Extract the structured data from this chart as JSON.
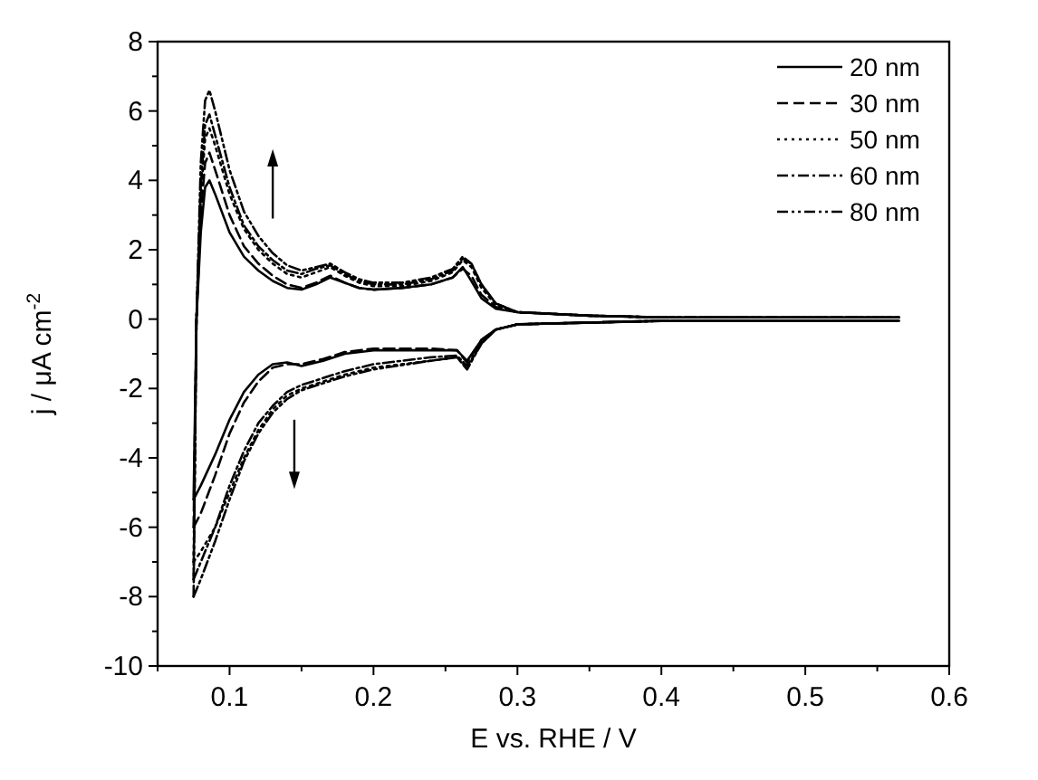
{
  "chart_data": {
    "type": "line",
    "xlabel": "E vs. RHE / V",
    "ylabel": "j / μA cm$^{-2}$",
    "xlim": [
      0.05,
      0.6
    ],
    "ylim": [
      -10,
      8
    ],
    "xticks": [
      {
        "value": 0.05,
        "label": null
      },
      0.1,
      {
        "value": 0.15,
        "label": null
      },
      0.2,
      {
        "value": 0.25,
        "label": null
      },
      0.3,
      {
        "value": 0.35,
        "label": null
      },
      0.4,
      {
        "value": 0.45,
        "label": null
      },
      0.5,
      {
        "value": 0.55,
        "label": null
      },
      0.6
    ],
    "yticks": [
      -10,
      {
        "value": -9,
        "label": null
      },
      -8,
      {
        "value": -7,
        "label": null
      },
      -6,
      {
        "value": -5,
        "label": null
      },
      -4,
      {
        "value": -3,
        "label": null
      },
      -2,
      {
        "value": -1,
        "label": null
      },
      0,
      {
        "value": 1,
        "label": null
      },
      2,
      {
        "value": 3,
        "label": null
      },
      4,
      {
        "value": 5,
        "label": null
      },
      6,
      {
        "value": 7,
        "label": null
      },
      8
    ],
    "legend": "top right",
    "grid": false,
    "series": [
      {
        "name": "20 nm",
        "color": "#000000",
        "line_style": "solid",
        "x": [
          0.075,
          0.077,
          0.08,
          0.083,
          0.086,
          0.09,
          0.1,
          0.11,
          0.12,
          0.13,
          0.14,
          0.15,
          0.16,
          0.17,
          0.18,
          0.19,
          0.2,
          0.22,
          0.24,
          0.255,
          0.262,
          0.268,
          0.275,
          0.285,
          0.3,
          0.35,
          0.4,
          0.45,
          0.5,
          0.55,
          0.565
        ],
        "values": [
          -5.2,
          0,
          2.5,
          3.8,
          4.0,
          3.6,
          2.5,
          1.8,
          1.4,
          1.1,
          0.9,
          0.85,
          1.0,
          1.2,
          1.05,
          0.9,
          0.85,
          0.9,
          1.0,
          1.2,
          1.5,
          1.1,
          0.6,
          0.3,
          0.2,
          0.1,
          0.05,
          0.05,
          0.05,
          0.05,
          0.05
        ]
      },
      {
        "name": "30 nm",
        "color": "#000000",
        "line_style": "dashed",
        "x": [
          0.075,
          0.077,
          0.08,
          0.083,
          0.086,
          0.09,
          0.1,
          0.11,
          0.12,
          0.13,
          0.14,
          0.15,
          0.16,
          0.17,
          0.18,
          0.19,
          0.2,
          0.22,
          0.24,
          0.255,
          0.262,
          0.268,
          0.275,
          0.285,
          0.3,
          0.35,
          0.4,
          0.45,
          0.5,
          0.55,
          0.565
        ],
        "values": [
          -6,
          0,
          3,
          4.5,
          4.8,
          4.3,
          3.0,
          2.1,
          1.6,
          1.25,
          1.0,
          0.9,
          1.05,
          1.25,
          1.05,
          0.9,
          0.85,
          0.9,
          1.0,
          1.2,
          1.45,
          1.25,
          0.7,
          0.35,
          0.2,
          0.1,
          0.05,
          0.05,
          0.05,
          0.05,
          0.05
        ]
      },
      {
        "name": "50 nm",
        "color": "#000000",
        "line_style": "dotted",
        "x": [
          0.075,
          0.077,
          0.08,
          0.083,
          0.086,
          0.09,
          0.1,
          0.11,
          0.12,
          0.13,
          0.14,
          0.15,
          0.16,
          0.17,
          0.18,
          0.19,
          0.2,
          0.22,
          0.24,
          0.255,
          0.262,
          0.268,
          0.275,
          0.285,
          0.3,
          0.35,
          0.4,
          0.45,
          0.5,
          0.55,
          0.565
        ],
        "values": [
          -7,
          0,
          3.5,
          5.2,
          5.5,
          5.0,
          3.6,
          2.6,
          2.0,
          1.6,
          1.3,
          1.2,
          1.35,
          1.5,
          1.25,
          1.05,
          0.95,
          0.95,
          1.1,
          1.35,
          1.7,
          1.5,
          0.9,
          0.4,
          0.2,
          0.1,
          0.05,
          0.05,
          0.05,
          0.05,
          0.05
        ]
      },
      {
        "name": "60 nm",
        "color": "#000000",
        "line_style": "dashdot",
        "x": [
          0.075,
          0.077,
          0.08,
          0.083,
          0.086,
          0.09,
          0.1,
          0.11,
          0.12,
          0.13,
          0.14,
          0.15,
          0.16,
          0.17,
          0.18,
          0.19,
          0.2,
          0.22,
          0.24,
          0.255,
          0.262,
          0.268,
          0.275,
          0.285,
          0.3,
          0.35,
          0.4,
          0.45,
          0.5,
          0.55,
          0.565
        ],
        "values": [
          -7.5,
          0,
          3.8,
          5.6,
          5.9,
          5.3,
          3.8,
          2.7,
          2.1,
          1.7,
          1.4,
          1.3,
          1.45,
          1.55,
          1.3,
          1.1,
          1.0,
          1.0,
          1.15,
          1.4,
          1.75,
          1.6,
          1.0,
          0.45,
          0.2,
          0.1,
          0.05,
          0.05,
          0.05,
          0.05,
          0.05
        ]
      },
      {
        "name": "80 nm",
        "color": "#000000",
        "line_style": "dashdotdot",
        "x": [
          0.075,
          0.077,
          0.08,
          0.083,
          0.086,
          0.09,
          0.1,
          0.11,
          0.12,
          0.13,
          0.14,
          0.15,
          0.16,
          0.17,
          0.18,
          0.19,
          0.2,
          0.22,
          0.24,
          0.255,
          0.262,
          0.268,
          0.275,
          0.285,
          0.3,
          0.35,
          0.4,
          0.45,
          0.5,
          0.55,
          0.565
        ],
        "values": [
          -8,
          0,
          4.5,
          6.3,
          6.6,
          6.0,
          4.3,
          3.1,
          2.4,
          1.9,
          1.55,
          1.4,
          1.5,
          1.6,
          1.35,
          1.15,
          1.05,
          1.05,
          1.2,
          1.45,
          1.8,
          1.6,
          1.0,
          0.45,
          0.2,
          0.1,
          0.05,
          0.05,
          0.05,
          0.05,
          0.05
        ]
      },
      {
        "color": "#000000",
        "line_style": "solid",
        "x": [
          0.075,
          0.08,
          0.09,
          0.1,
          0.11,
          0.12,
          0.13,
          0.14,
          0.15,
          0.165,
          0.18,
          0.2,
          0.24,
          0.258,
          0.265,
          0.275,
          0.285,
          0.3,
          0.4,
          0.5,
          0.565
        ],
        "values": [
          -5.2,
          -4.8,
          -3.9,
          -2.9,
          -2.1,
          -1.6,
          -1.3,
          -1.25,
          -1.35,
          -1.2,
          -1.0,
          -0.9,
          -0.9,
          -0.9,
          -1.2,
          -0.6,
          -0.3,
          -0.15,
          -0.05,
          -0.05,
          -0.05
        ]
      },
      {
        "color": "#000000",
        "line_style": "dashed",
        "x": [
          0.075,
          0.08,
          0.09,
          0.1,
          0.11,
          0.12,
          0.13,
          0.14,
          0.15,
          0.165,
          0.18,
          0.2,
          0.24,
          0.258,
          0.265,
          0.275,
          0.285,
          0.3,
          0.4,
          0.5,
          0.565
        ],
        "values": [
          -6,
          -5.6,
          -4.5,
          -3.3,
          -2.4,
          -1.8,
          -1.4,
          -1.3,
          -1.3,
          -1.15,
          -0.95,
          -0.85,
          -0.85,
          -0.9,
          -1.25,
          -0.6,
          -0.3,
          -0.15,
          -0.05,
          -0.05,
          -0.05
        ]
      },
      {
        "color": "#000000",
        "line_style": "dotted",
        "x": [
          0.075,
          0.08,
          0.09,
          0.1,
          0.11,
          0.12,
          0.13,
          0.14,
          0.15,
          0.165,
          0.18,
          0.2,
          0.24,
          0.258,
          0.265,
          0.275,
          0.285,
          0.3,
          0.4,
          0.5,
          0.565
        ],
        "values": [
          -7,
          -6.7,
          -6.0,
          -5.0,
          -4.0,
          -3.2,
          -2.6,
          -2.2,
          -2.0,
          -1.8,
          -1.6,
          -1.4,
          -1.2,
          -1.1,
          -1.4,
          -0.7,
          -0.3,
          -0.15,
          -0.05,
          -0.05,
          -0.05
        ]
      },
      {
        "color": "#000000",
        "line_style": "dashdot",
        "x": [
          0.075,
          0.08,
          0.09,
          0.1,
          0.11,
          0.12,
          0.13,
          0.14,
          0.15,
          0.165,
          0.18,
          0.2,
          0.24,
          0.258,
          0.265,
          0.275,
          0.285,
          0.3,
          0.4,
          0.5,
          0.565
        ],
        "values": [
          -7.5,
          -7.0,
          -6.0,
          -4.8,
          -3.8,
          -3.0,
          -2.5,
          -2.1,
          -1.9,
          -1.7,
          -1.5,
          -1.3,
          -1.1,
          -1.05,
          -1.35,
          -0.7,
          -0.3,
          -0.15,
          -0.05,
          -0.05,
          -0.05
        ]
      },
      {
        "color": "#000000",
        "line_style": "dashdotdot",
        "x": [
          0.075,
          0.08,
          0.09,
          0.1,
          0.11,
          0.12,
          0.13,
          0.14,
          0.15,
          0.165,
          0.18,
          0.2,
          0.24,
          0.258,
          0.265,
          0.275,
          0.285,
          0.3,
          0.4,
          0.5,
          0.565
        ],
        "values": [
          -8,
          -7.5,
          -6.4,
          -5.2,
          -4.1,
          -3.3,
          -2.7,
          -2.3,
          -2.05,
          -1.85,
          -1.65,
          -1.45,
          -1.2,
          -1.1,
          -1.45,
          -0.7,
          -0.3,
          -0.15,
          -0.05,
          -0.05,
          -0.05
        ]
      }
    ]
  }
}
